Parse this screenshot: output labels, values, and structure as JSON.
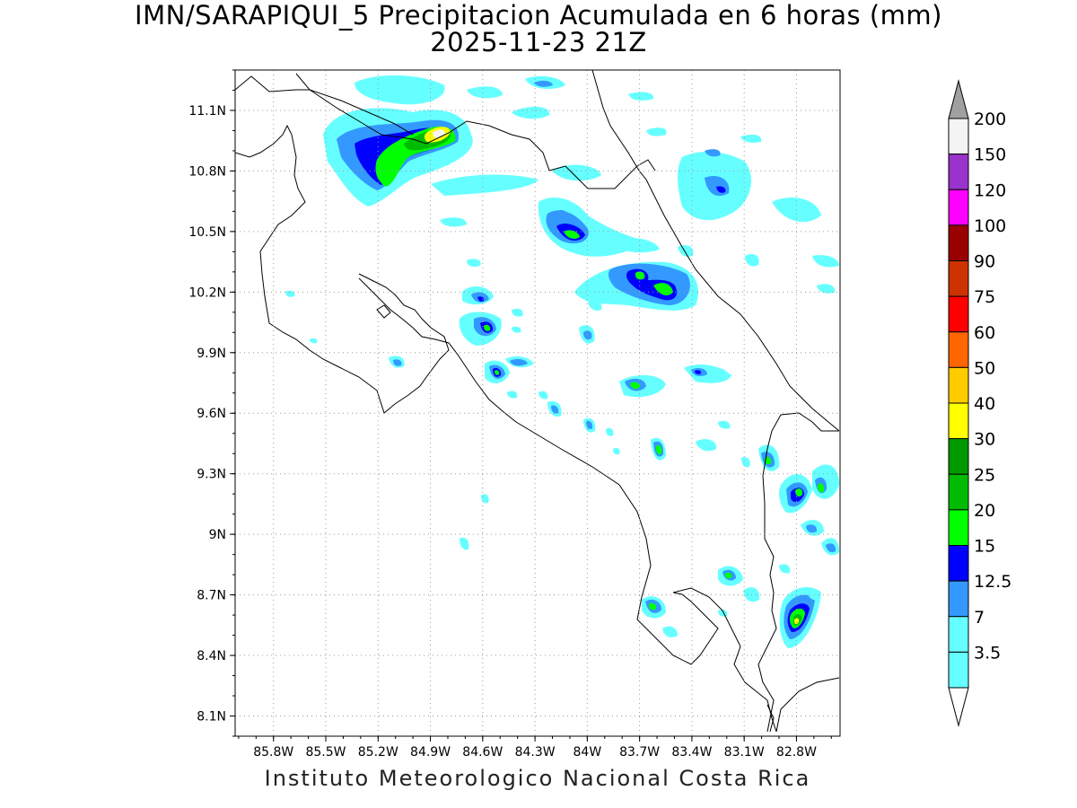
{
  "title": {
    "line1": "IMN/SARAPIQUI_5 Precipitacion Acumulada en 6 horas (mm)",
    "line2": "2025-11-23 21Z"
  },
  "footer": "Instituto Meteorologico Nacional Costa Rica",
  "map": {
    "lon_range": [
      -86.02,
      -82.55
    ],
    "lat_range": [
      8.0,
      11.3
    ],
    "lon_ticks": [
      {
        "value": -85.8,
        "label": "85.8W"
      },
      {
        "value": -85.5,
        "label": "85.5W"
      },
      {
        "value": -85.2,
        "label": "85.2W"
      },
      {
        "value": -84.9,
        "label": "84.9W"
      },
      {
        "value": -84.6,
        "label": "84.6W"
      },
      {
        "value": -84.3,
        "label": "84.3W"
      },
      {
        "value": -84.0,
        "label": "84W"
      },
      {
        "value": -83.7,
        "label": "83.7W"
      },
      {
        "value": -83.4,
        "label": "83.4W"
      },
      {
        "value": -83.1,
        "label": "83.1W"
      },
      {
        "value": -82.8,
        "label": "82.8W"
      }
    ],
    "lat_ticks": [
      {
        "value": 11.1,
        "label": "11.1N"
      },
      {
        "value": 10.8,
        "label": "10.8N"
      },
      {
        "value": 10.5,
        "label": "10.5N"
      },
      {
        "value": 10.2,
        "label": "10.2N"
      },
      {
        "value": 9.9,
        "label": "9.9N"
      },
      {
        "value": 9.6,
        "label": "9.6N"
      },
      {
        "value": 9.3,
        "label": "9.3N"
      },
      {
        "value": 9.0,
        "label": "9N"
      },
      {
        "value": 8.7,
        "label": "8.7N"
      },
      {
        "value": 8.4,
        "label": "8.4N"
      },
      {
        "value": 8.1,
        "label": "8.1N"
      }
    ],
    "grid": true
  },
  "legend": {
    "levels": [
      {
        "label": "200",
        "color": "#a0a0a0"
      },
      {
        "label": "150",
        "color": "#f4f4f4"
      },
      {
        "label": "120",
        "color": "#9933cc"
      },
      {
        "label": "100",
        "color": "#ff00ff"
      },
      {
        "label": "90",
        "color": "#990000"
      },
      {
        "label": "75",
        "color": "#cc3300"
      },
      {
        "label": "60",
        "color": "#ff0000"
      },
      {
        "label": "50",
        "color": "#ff6600"
      },
      {
        "label": "40",
        "color": "#ffcc00"
      },
      {
        "label": "30",
        "color": "#ffff00"
      },
      {
        "label": "25",
        "color": "#009900"
      },
      {
        "label": "20",
        "color": "#00bb00"
      },
      {
        "label": "15",
        "color": "#00ff00"
      },
      {
        "label": "12.5",
        "color": "#0000ff"
      },
      {
        "label": "7",
        "color": "#3399ff"
      },
      {
        "label": "3.5",
        "color": "#66ffff"
      }
    ],
    "bottom_color": "#ffffff"
  }
}
